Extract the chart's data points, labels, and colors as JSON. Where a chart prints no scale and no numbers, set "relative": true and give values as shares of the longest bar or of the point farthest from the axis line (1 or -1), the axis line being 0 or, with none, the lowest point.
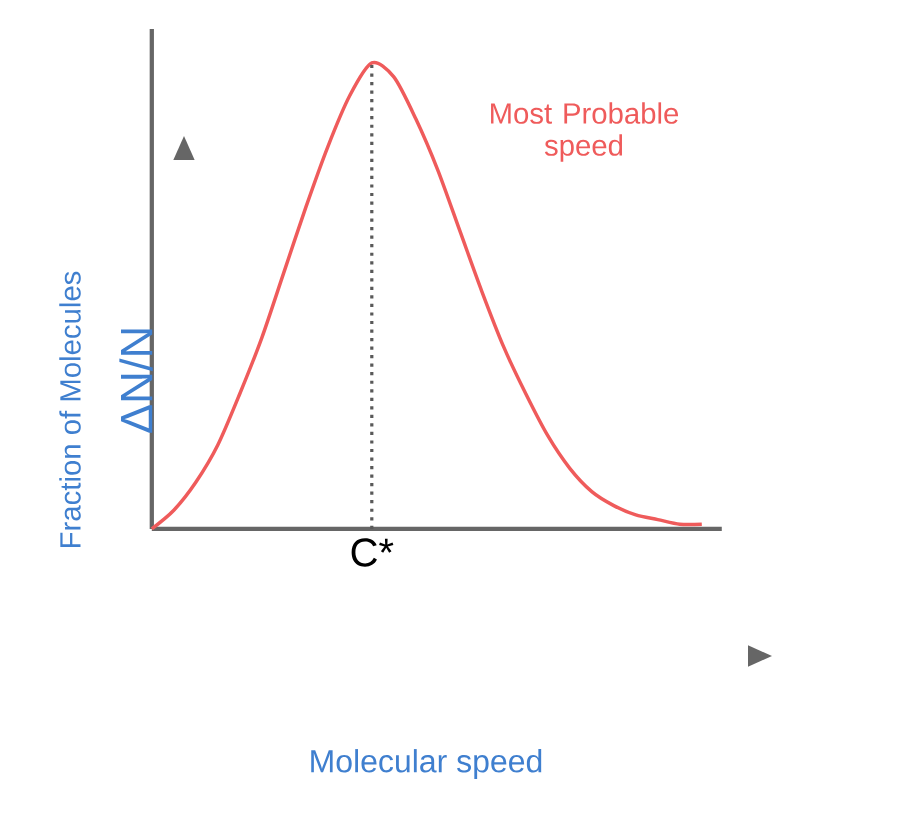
{
  "chart_data": {
    "type": "line",
    "relative": true,
    "ylabel": "Fraction of Molecules",
    "color": "#ef5b5b",
    "marker": "none",
    "line_style": "solid",
    "categories": [
      null,
      null,
      null,
      null,
      null,
      null,
      null,
      null,
      null,
      null,
      null,
      null,
      null,
      null,
      null,
      null,
      null,
      null,
      null,
      null,
      null,
      null,
      null,
      null,
      null,
      null
    ],
    "values": [
      0,
      0.04,
      0.1,
      0.18,
      0.29,
      0.41,
      0.55,
      0.69,
      0.82,
      0.93,
      1,
      0.97,
      0.88,
      0.77,
      0.64,
      0.51,
      0.39,
      0.29,
      0.2,
      0.13,
      0.08,
      0.05,
      0.03,
      0.02,
      0.01,
      0.01
    ],
    "annotations": [
      "Most Probable speed",
      "ΔN/N",
      "C*",
      "Molecular speed"
    ]
  }
}
